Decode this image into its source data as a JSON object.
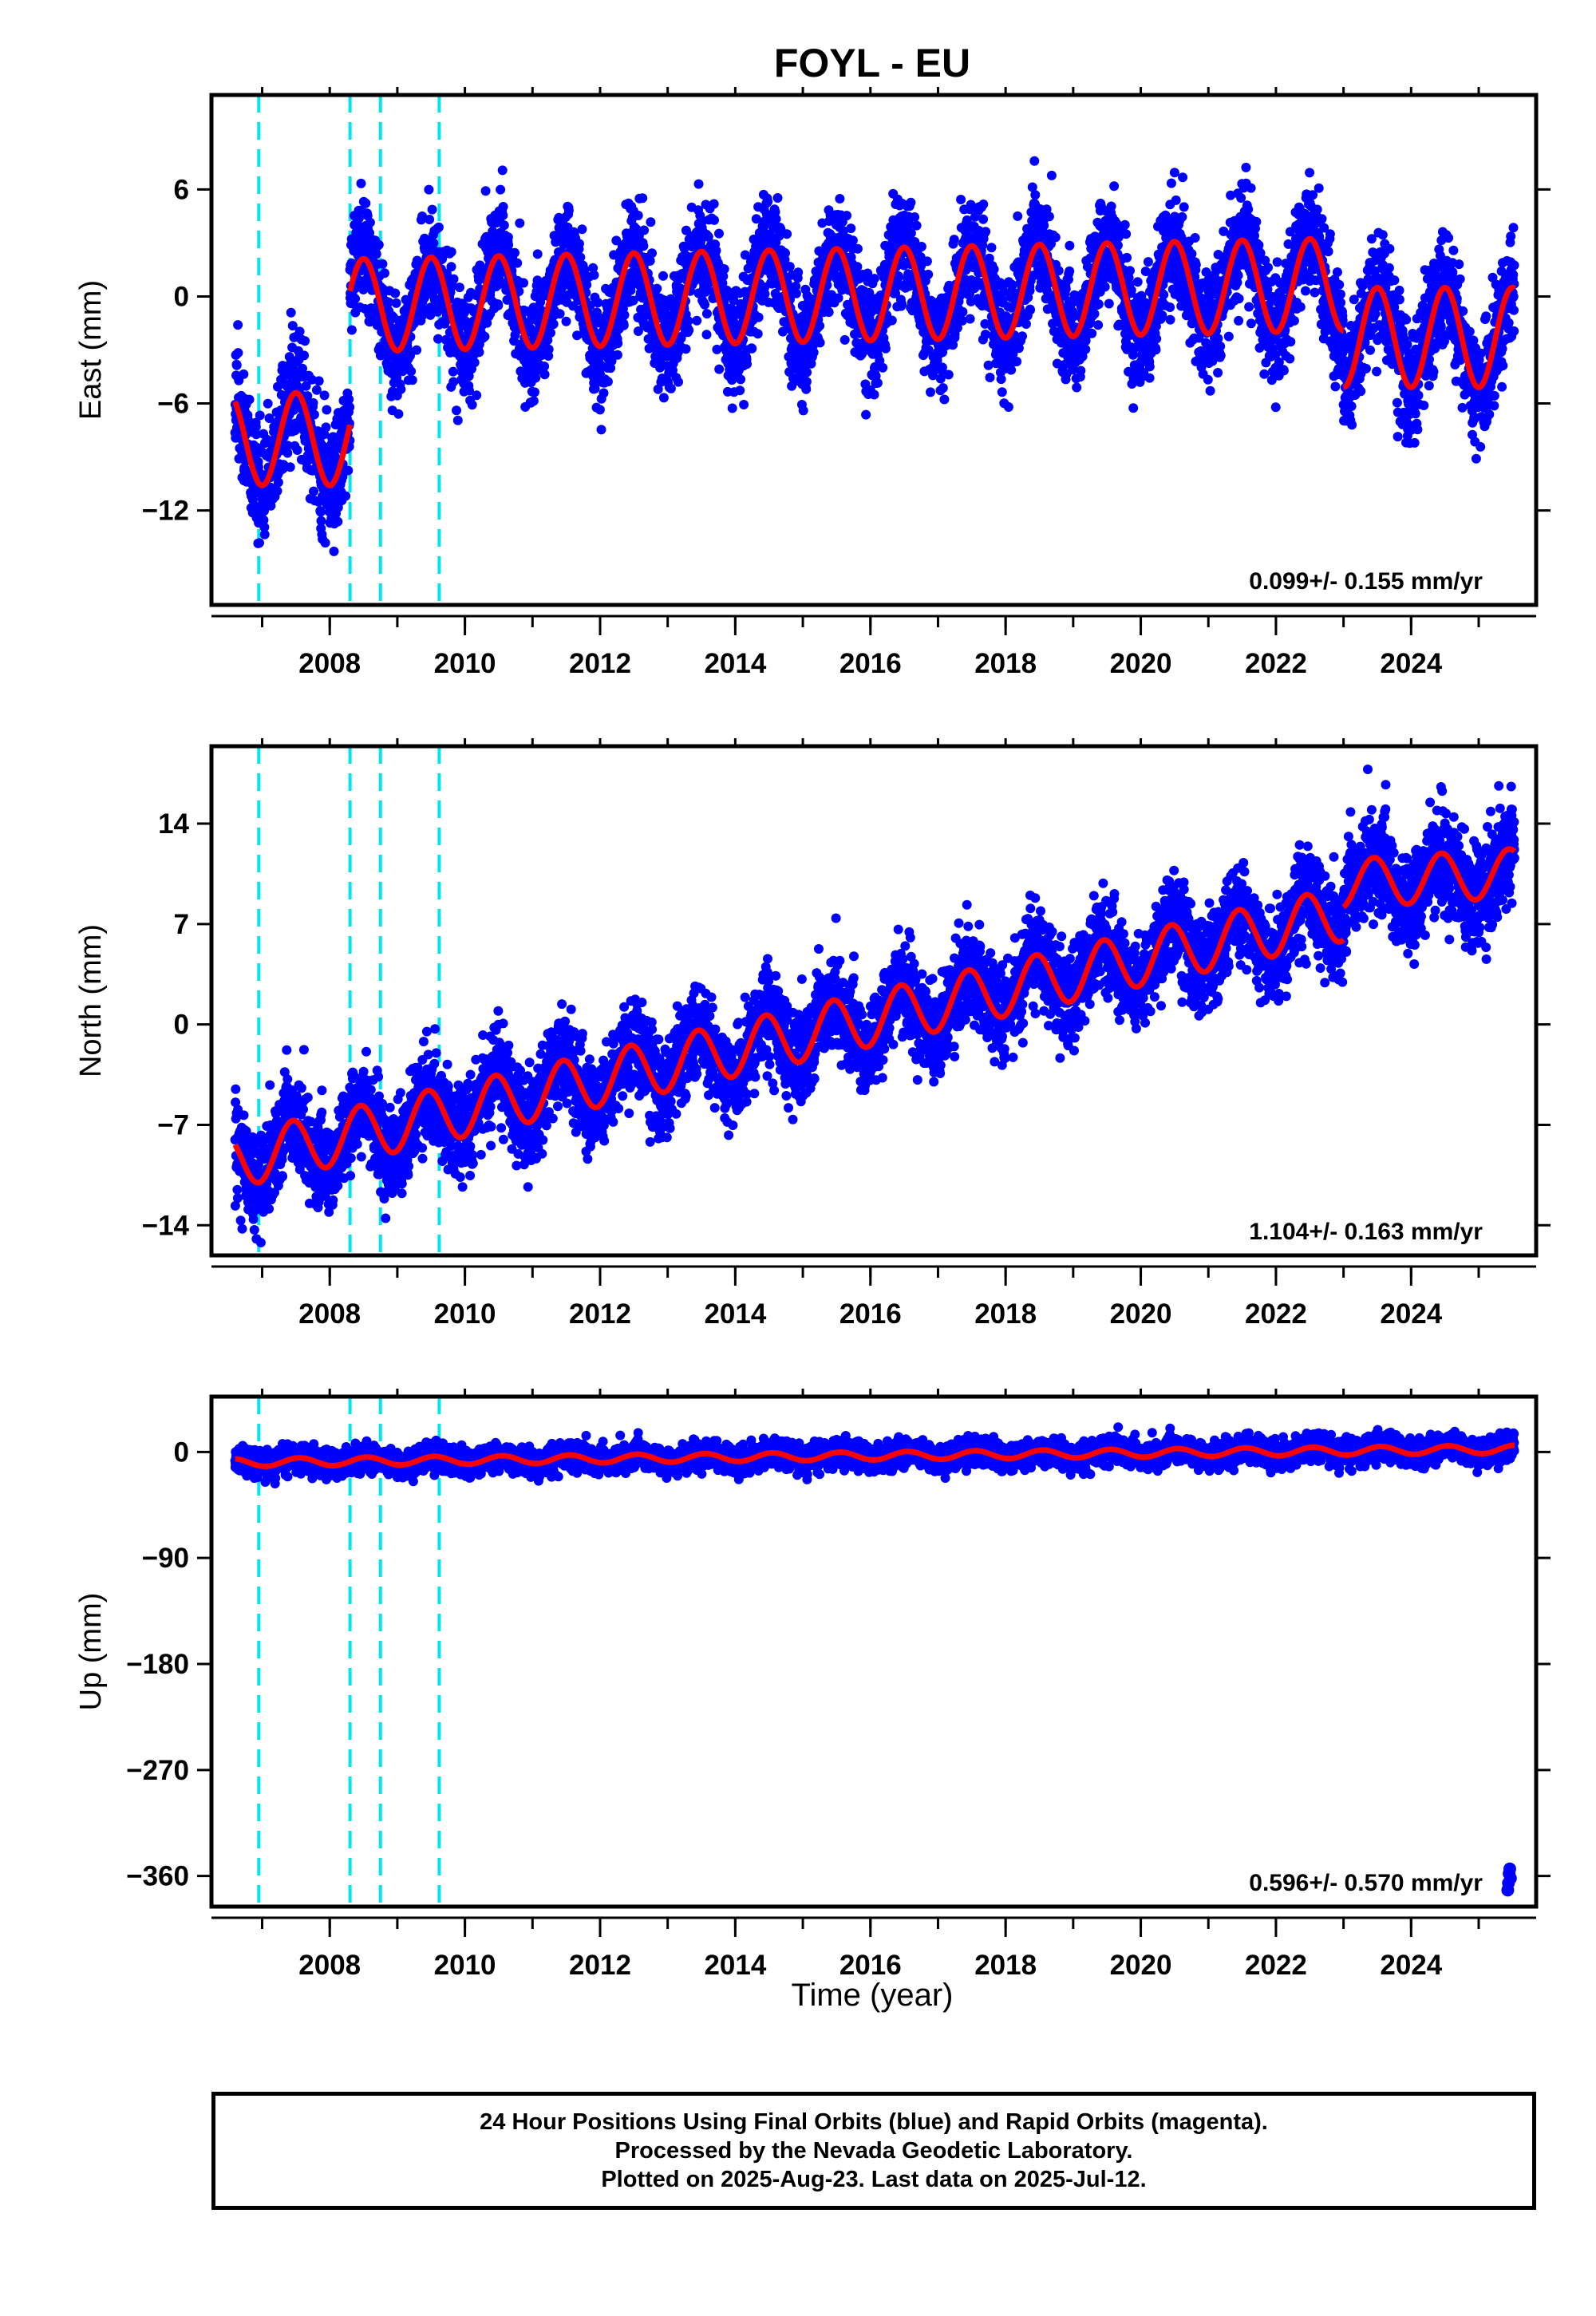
{
  "title": "FOYL - EU",
  "xlabel": "Time (year)",
  "footnote": {
    "line1": "24 Hour Positions Using Final Orbits (blue) and Rapid Orbits (magenta).",
    "line2": "Processed by the Nevada Geodetic Laboratory.",
    "line3": "Plotted on 2025-Aug-23. Last data on 2025-Jul-12."
  },
  "colors": {
    "points": "#0000ff",
    "model": "#ff0000",
    "events": "#00e5ee",
    "axes": "#000000"
  },
  "chart_data": [
    {
      "type": "scatter",
      "component": "east",
      "ylabel": "East (mm)",
      "xlim": [
        2006.25,
        2025.85
      ],
      "ylim": [
        -17.3,
        11.3
      ],
      "xticks": [
        2008,
        2010,
        2012,
        2014,
        2016,
        2018,
        2020,
        2022,
        2024
      ],
      "yticks": [
        6,
        0,
        -6,
        -12
      ],
      "ytick_labels": [
        "6",
        "0",
        "−6",
        "−12"
      ],
      "rate_text": "0.099+/- 0.155 mm/yr",
      "event_lines": [
        2006.95,
        2008.3,
        2008.75,
        2009.62
      ],
      "data_start": 2006.6,
      "data_end": 2025.53,
      "segments": [
        {
          "start": 2006.6,
          "end": 2008.3,
          "offset": -8.0,
          "trend": 0.0,
          "amplitude": 2.6,
          "phase": 2007.5,
          "scatter": 1.6
        },
        {
          "start": 2008.3,
          "end": 2023.0,
          "offset": -0.5,
          "trend": 0.08,
          "amplitude": 2.6,
          "phase": 2008.5,
          "scatter": 1.5
        },
        {
          "start": 2023.0,
          "end": 2025.53,
          "offset": -2.3,
          "trend": 0.0,
          "amplitude": 2.8,
          "phase": 2008.5,
          "scatter": 1.6
        }
      ]
    },
    {
      "type": "scatter",
      "component": "north",
      "ylabel": "North (mm)",
      "xlim": [
        2006.25,
        2025.85
      ],
      "ylim": [
        -16.1,
        19.4
      ],
      "xticks": [
        2008,
        2010,
        2012,
        2014,
        2016,
        2018,
        2020,
        2022,
        2024
      ],
      "yticks": [
        14,
        7,
        0,
        -7,
        -14
      ],
      "ytick_labels": [
        "14",
        "7",
        "0",
        "−7",
        "−14"
      ],
      "rate_text": "1.104+/- 0.163 mm/yr",
      "event_lines": [
        2006.95,
        2008.3,
        2008.75,
        2009.62
      ],
      "data_start": 2006.6,
      "data_end": 2025.53,
      "segments": [
        {
          "start": 2006.6,
          "end": 2023.0,
          "offset": -9.5,
          "trend": 1.05,
          "amplitude": 1.9,
          "phase": 2007.45,
          "scatter": 1.6
        },
        {
          "start": 2023.0,
          "end": 2025.53,
          "offset": 9.8,
          "trend": 0.3,
          "amplitude": 1.7,
          "phase": 2007.45,
          "scatter": 1.8
        }
      ]
    },
    {
      "type": "scatter",
      "component": "up",
      "ylabel": "Up (mm)",
      "xlim": [
        2006.25,
        2025.85
      ],
      "ylim": [
        -386,
        47
      ],
      "xticks": [
        2008,
        2010,
        2012,
        2014,
        2016,
        2018,
        2020,
        2022,
        2024
      ],
      "yticks": [
        0,
        -90,
        -180,
        -270,
        -360
      ],
      "ytick_labels": [
        "0",
        "−90",
        "−180",
        "−270",
        "−360"
      ],
      "rate_text": "0.596+/- 0.570 mm/yr",
      "event_lines": [
        2006.95,
        2008.3,
        2008.75,
        2009.62
      ],
      "data_start": 2006.6,
      "data_end": 2025.53,
      "segments": [
        {
          "start": 2006.6,
          "end": 2025.53,
          "offset": -9.0,
          "trend": 0.6,
          "amplitude": 3.5,
          "phase": 2007.55,
          "scatter": 5.5
        }
      ],
      "outliers": [
        {
          "x": 2025.45,
          "y": -358
        },
        {
          "x": 2025.47,
          "y": -362
        },
        {
          "x": 2025.44,
          "y": -366
        },
        {
          "x": 2025.46,
          "y": -354
        },
        {
          "x": 2025.43,
          "y": -372
        }
      ]
    }
  ]
}
